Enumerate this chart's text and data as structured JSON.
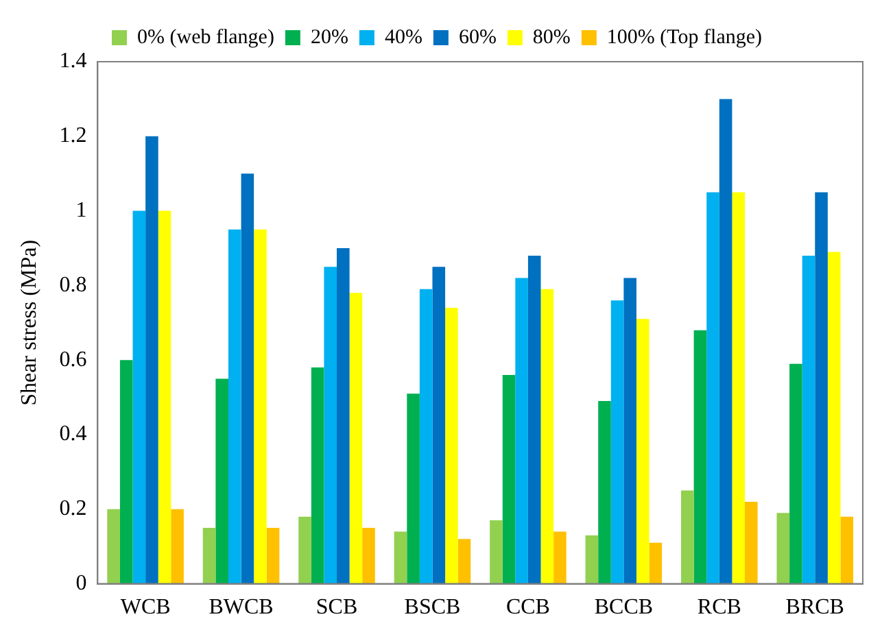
{
  "chart_data": {
    "type": "bar",
    "ylabel": "Shear stress (MPa)",
    "categories": [
      "WCB",
      "BWCB",
      "SCB",
      "BSCB",
      "CCB",
      "BCCB",
      "RCB",
      "BRCB"
    ],
    "series": [
      {
        "name": "0% (web flange)",
        "color": "#92d050",
        "values": [
          0.2,
          0.15,
          0.18,
          0.14,
          0.17,
          0.13,
          0.25,
          0.19
        ]
      },
      {
        "name": "20%",
        "color": "#00b050",
        "values": [
          0.6,
          0.55,
          0.58,
          0.51,
          0.56,
          0.49,
          0.68,
          0.59
        ]
      },
      {
        "name": "40%",
        "color": "#00b0f0",
        "values": [
          1.0,
          0.95,
          0.85,
          0.79,
          0.82,
          0.76,
          1.05,
          0.88
        ]
      },
      {
        "name": "60%",
        "color": "#0070c0",
        "values": [
          1.2,
          1.1,
          0.9,
          0.85,
          0.88,
          0.82,
          1.3,
          1.05
        ]
      },
      {
        "name": "80%",
        "color": "#ffff00",
        "values": [
          1.0,
          0.95,
          0.78,
          0.74,
          0.79,
          0.71,
          1.05,
          0.89
        ]
      },
      {
        "name": "100% (Top flange)",
        "color": "#ffc000",
        "values": [
          0.2,
          0.15,
          0.15,
          0.12,
          0.14,
          0.11,
          0.22,
          0.18
        ]
      }
    ],
    "ylim": [
      0,
      1.4
    ],
    "yticks": [
      0,
      0.2,
      0.4,
      0.6,
      0.8,
      1,
      1.2,
      1.4
    ],
    "grid": false,
    "legend": "top"
  }
}
